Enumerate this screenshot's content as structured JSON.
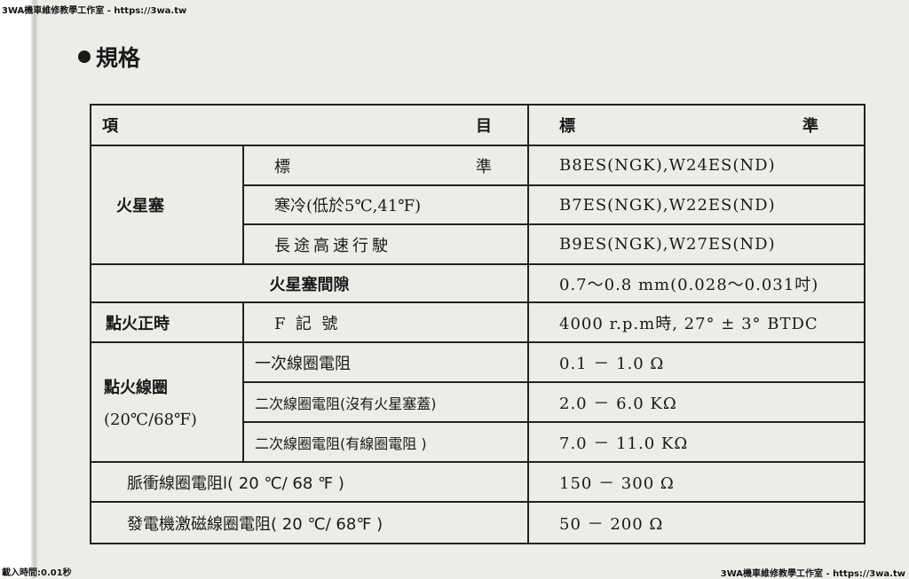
{
  "watermark": {
    "top_left": "3WA機車維修教學工作室 - https://3wa.tw",
    "bottom_left": "載入時間:0.01秒",
    "bottom_right": "3WA機車維修教學工作室 - https://3wa.tw"
  },
  "section_title": "規格",
  "table": {
    "header": {
      "item_left": "項",
      "item_right": "目",
      "std_left": "標",
      "std_right": "準"
    },
    "spark_plug": {
      "label": "火星塞",
      "rows": [
        {
          "item_left": "標",
          "item_right": "準",
          "value": "B8ES(NGK),W24ES(ND)"
        },
        {
          "item": "寒冷(低於5℃,41℉)",
          "value": "B7ES(NGK),W22ES(ND)"
        },
        {
          "item": "長途高速行駛",
          "value": "B9ES(NGK),W27ES(ND)"
        }
      ]
    },
    "plug_gap": {
      "label": "火星塞間隙",
      "value": "0.7～0.8 mm(0.028～0.031吋)"
    },
    "timing": {
      "label": "點火正時",
      "item": "F  記  號",
      "value": "4000 r.p.m時, 27° ± 3° BTDC"
    },
    "ignition_coil": {
      "label": "點火線圈",
      "label_sub": "(20℃/68℉)",
      "rows": [
        {
          "item": "一次線圈電阻",
          "value": "0.1 － 1.0 Ω"
        },
        {
          "item": "二次線圈電阻(沒有火星塞蓋)",
          "value": "2.0 － 6.0 KΩ"
        },
        {
          "item": "二次線圈電阻(有線圈電阻 )",
          "value": "7.0 － 11.0 KΩ"
        }
      ]
    },
    "pulse_coil": {
      "label": "脈衝線圈電阻l( 20 ℃/ 68 ℉ )",
      "value": "150 － 300 Ω"
    },
    "exciter_coil": {
      "label": "發電機激磁線圈電阻( 20 ℃/ 68℉ )",
      "value": "50 － 200 Ω"
    }
  }
}
